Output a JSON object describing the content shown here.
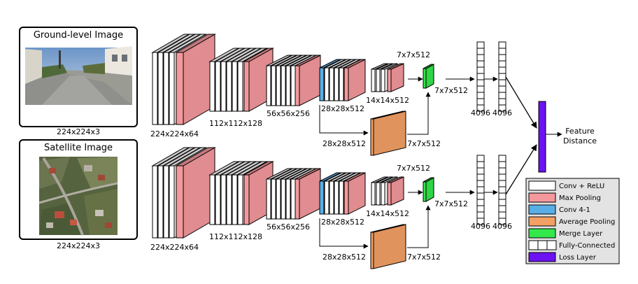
{
  "inputs": {
    "ground": {
      "title": "Ground-level Image",
      "size": "224x224x3"
    },
    "satellite": {
      "title": "Satellite Image",
      "size": "224x224x3"
    }
  },
  "branch_labels": {
    "s1": "224x224x64",
    "s2": "112x112x128",
    "s3": "56x56x256",
    "s4": "28x28x512",
    "s5": "14x14x512",
    "pool_top": "7x7x512",
    "merge": "7x7x512",
    "avg_in": "28x28x512",
    "avg_out": "7x7x512",
    "fc1": "4096",
    "fc2": "4096"
  },
  "output_label": [
    "Feature",
    "Distance"
  ],
  "legend": [
    {
      "label": "Conv + ReLU",
      "color": "#ffffff",
      "kind": "box"
    },
    {
      "label": "Max Pooling",
      "color": "#f4989c",
      "kind": "box"
    },
    {
      "label": "Conv 4-1",
      "color": "#5aaee6",
      "kind": "box"
    },
    {
      "label": "Average Pooling",
      "color": "#f4a064",
      "kind": "box"
    },
    {
      "label": "Merge Layer",
      "color": "#33e84a",
      "kind": "box"
    },
    {
      "label": "Fully-Connected",
      "color": "#ffffff",
      "kind": "fc"
    },
    {
      "label": "Loss Layer",
      "color": "#6d12f2",
      "kind": "box"
    }
  ],
  "colors": {
    "conv": "#ffffff",
    "maxpool": "#f4989c",
    "conv41": "#5aaee6",
    "avgpool": "#f4a064",
    "merge": "#33e84a",
    "loss": "#6d12f2",
    "legend_bg": "#e3e3e3"
  }
}
